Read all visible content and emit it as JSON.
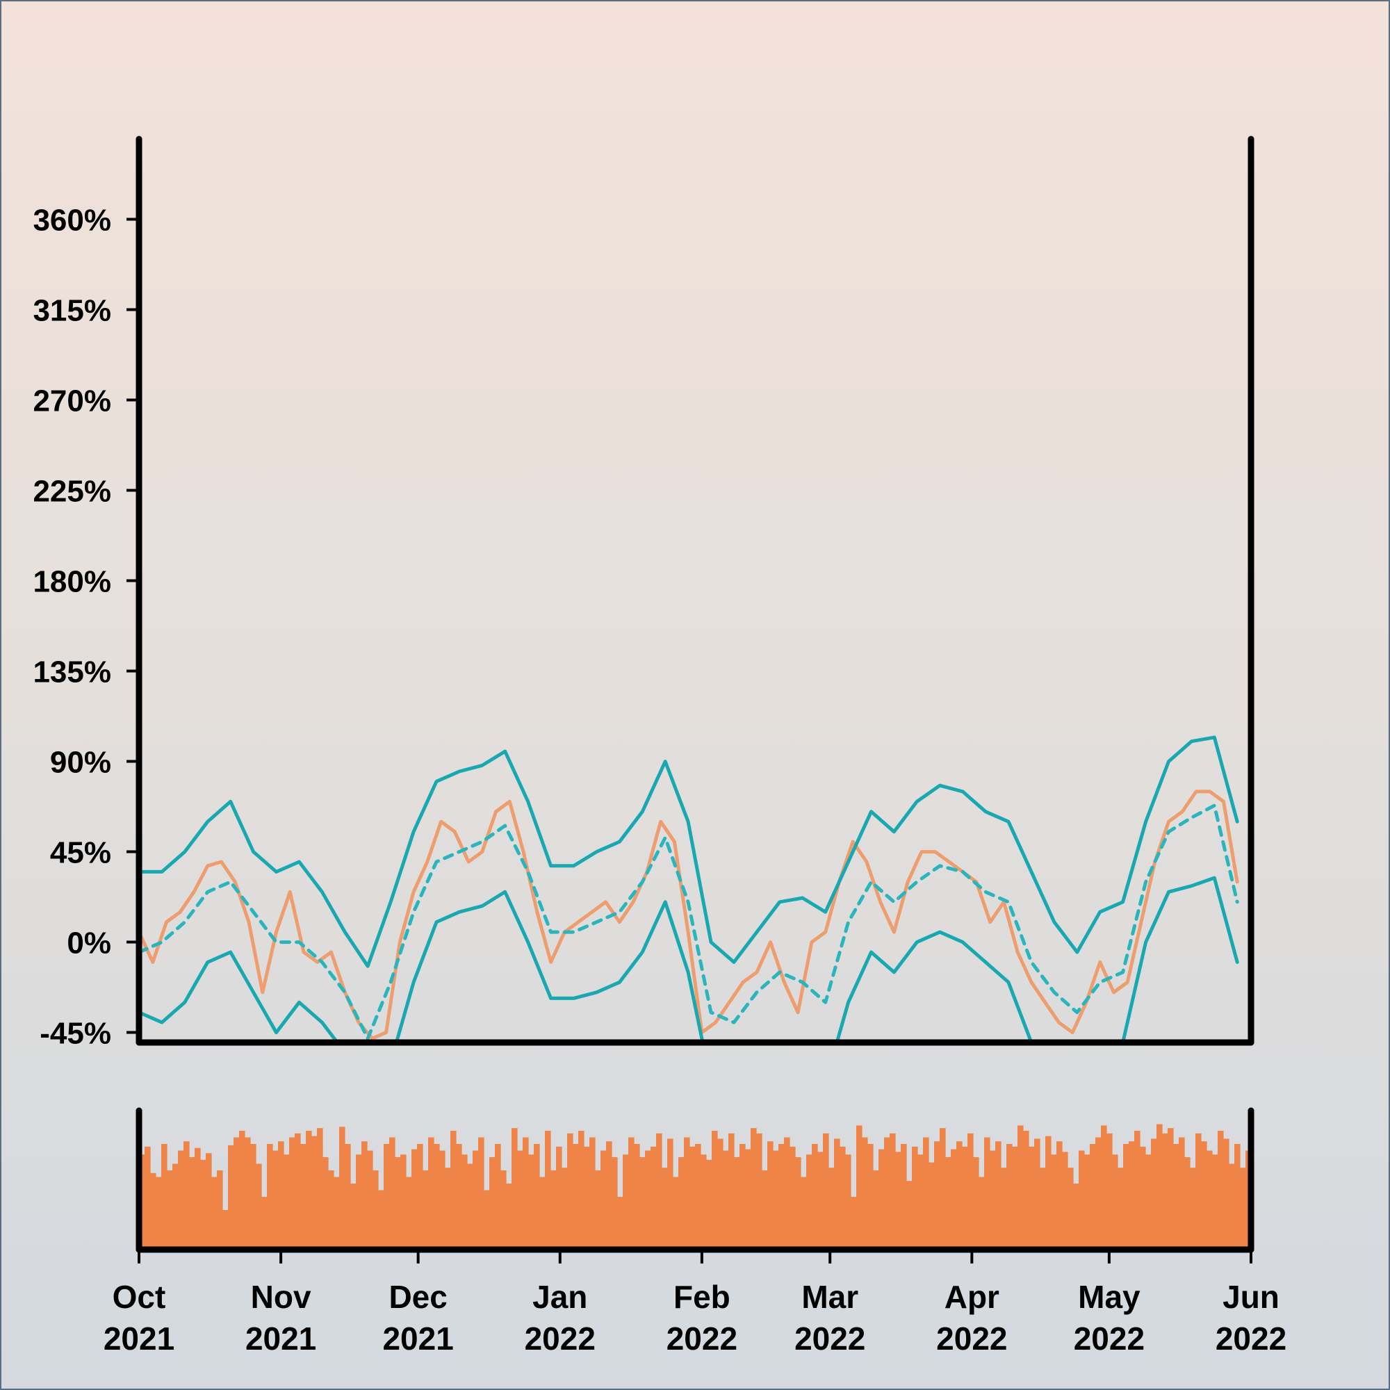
{
  "chart_data": {
    "type": "line",
    "title": "",
    "xlabel": "",
    "ylabel": "",
    "x_range": [
      "2021-10-01",
      "2022-06-01"
    ],
    "ylim": [
      -50,
      400
    ],
    "y_ticks": [
      -45,
      0,
      45,
      90,
      135,
      180,
      225,
      270,
      315,
      360
    ],
    "y_tick_labels": [
      "-45%",
      "0%",
      "45%",
      "90%",
      "135%",
      "180%",
      "225%",
      "270%",
      "315%",
      "360%"
    ],
    "x_ticks": [
      "2021-10-01",
      "2021-11-01",
      "2021-12-01",
      "2022-01-01",
      "2022-02-01",
      "2022-03-01",
      "2022-04-01",
      "2022-05-01",
      "2022-06-01"
    ],
    "x_tick_labels": [
      [
        "Oct",
        "2021"
      ],
      [
        "Nov",
        "2021"
      ],
      [
        "Dec",
        "2021"
      ],
      [
        "Jan",
        "2022"
      ],
      [
        "Feb",
        "2022"
      ],
      [
        "Mar",
        "2022"
      ],
      [
        "Apr",
        "2022"
      ],
      [
        "May",
        "2022"
      ],
      [
        "Jun",
        "2022"
      ]
    ],
    "series": [
      {
        "role": "price",
        "color": "#f0925a",
        "points": [
          [
            "2021-10-01",
            5
          ],
          [
            "2021-10-04",
            -10
          ],
          [
            "2021-10-07",
            10
          ],
          [
            "2021-10-10",
            15
          ],
          [
            "2021-10-13",
            25
          ],
          [
            "2021-10-16",
            38
          ],
          [
            "2021-10-19",
            40
          ],
          [
            "2021-10-22",
            30
          ],
          [
            "2021-10-25",
            10
          ],
          [
            "2021-10-28",
            -25
          ],
          [
            "2021-10-31",
            5
          ],
          [
            "2021-11-03",
            25
          ],
          [
            "2021-11-06",
            -5
          ],
          [
            "2021-11-09",
            -10
          ],
          [
            "2021-11-12",
            -5
          ],
          [
            "2021-11-15",
            -25
          ],
          [
            "2021-11-18",
            -40
          ],
          [
            "2021-11-21",
            -48
          ],
          [
            "2021-11-24",
            -45
          ],
          [
            "2021-11-27",
            0
          ],
          [
            "2021-11-30",
            25
          ],
          [
            "2021-12-03",
            40
          ],
          [
            "2021-12-06",
            60
          ],
          [
            "2021-12-09",
            55
          ],
          [
            "2021-12-12",
            40
          ],
          [
            "2021-12-15",
            45
          ],
          [
            "2021-12-18",
            65
          ],
          [
            "2021-12-21",
            70
          ],
          [
            "2021-12-24",
            45
          ],
          [
            "2021-12-27",
            15
          ],
          [
            "2021-12-30",
            -10
          ],
          [
            "2022-01-02",
            5
          ],
          [
            "2022-01-05",
            10
          ],
          [
            "2022-01-08",
            15
          ],
          [
            "2022-01-11",
            20
          ],
          [
            "2022-01-14",
            10
          ],
          [
            "2022-01-17",
            20
          ],
          [
            "2022-01-20",
            35
          ],
          [
            "2022-01-23",
            60
          ],
          [
            "2022-01-26",
            50
          ],
          [
            "2022-01-29",
            5
          ],
          [
            "2022-02-01",
            -45
          ],
          [
            "2022-02-04",
            -40
          ],
          [
            "2022-02-07",
            -30
          ],
          [
            "2022-02-10",
            -20
          ],
          [
            "2022-02-13",
            -15
          ],
          [
            "2022-02-16",
            0
          ],
          [
            "2022-02-19",
            -20
          ],
          [
            "2022-02-22",
            -35
          ],
          [
            "2022-02-25",
            0
          ],
          [
            "2022-02-28",
            5
          ],
          [
            "2022-03-03",
            30
          ],
          [
            "2022-03-06",
            50
          ],
          [
            "2022-03-09",
            40
          ],
          [
            "2022-03-12",
            20
          ],
          [
            "2022-03-15",
            5
          ],
          [
            "2022-03-18",
            30
          ],
          [
            "2022-03-21",
            45
          ],
          [
            "2022-03-24",
            45
          ],
          [
            "2022-03-27",
            40
          ],
          [
            "2022-03-30",
            35
          ],
          [
            "2022-04-02",
            30
          ],
          [
            "2022-04-05",
            10
          ],
          [
            "2022-04-08",
            20
          ],
          [
            "2022-04-11",
            -5
          ],
          [
            "2022-04-14",
            -20
          ],
          [
            "2022-04-17",
            -30
          ],
          [
            "2022-04-20",
            -40
          ],
          [
            "2022-04-23",
            -45
          ],
          [
            "2022-04-26",
            -30
          ],
          [
            "2022-04-29",
            -10
          ],
          [
            "2022-05-02",
            -25
          ],
          [
            "2022-05-05",
            -20
          ],
          [
            "2022-05-08",
            10
          ],
          [
            "2022-05-11",
            40
          ],
          [
            "2022-05-14",
            60
          ],
          [
            "2022-05-17",
            65
          ],
          [
            "2022-05-20",
            75
          ],
          [
            "2022-05-23",
            75
          ],
          [
            "2022-05-26",
            70
          ],
          [
            "2022-05-29",
            30
          ]
        ]
      },
      {
        "role": "moving-average",
        "color": "#2ab5bd",
        "dashed": true,
        "points": [
          [
            "2021-10-01",
            -5
          ],
          [
            "2021-10-06",
            0
          ],
          [
            "2021-10-11",
            10
          ],
          [
            "2021-10-16",
            25
          ],
          [
            "2021-10-21",
            30
          ],
          [
            "2021-10-26",
            15
          ],
          [
            "2021-10-31",
            0
          ],
          [
            "2021-11-05",
            0
          ],
          [
            "2021-11-10",
            -10
          ],
          [
            "2021-11-15",
            -25
          ],
          [
            "2021-11-20",
            -48
          ],
          [
            "2021-11-25",
            -20
          ],
          [
            "2021-11-30",
            15
          ],
          [
            "2021-12-05",
            40
          ],
          [
            "2021-12-10",
            45
          ],
          [
            "2021-12-15",
            50
          ],
          [
            "2021-12-20",
            58
          ],
          [
            "2021-12-25",
            35
          ],
          [
            "2021-12-30",
            5
          ],
          [
            "2022-01-04",
            5
          ],
          [
            "2022-01-09",
            10
          ],
          [
            "2022-01-14",
            15
          ],
          [
            "2022-01-19",
            30
          ],
          [
            "2022-01-24",
            52
          ],
          [
            "2022-01-29",
            20
          ],
          [
            "2022-02-03",
            -35
          ],
          [
            "2022-02-08",
            -40
          ],
          [
            "2022-02-13",
            -25
          ],
          [
            "2022-02-18",
            -15
          ],
          [
            "2022-02-23",
            -20
          ],
          [
            "2022-02-28",
            -30
          ],
          [
            "2022-03-05",
            10
          ],
          [
            "2022-03-10",
            30
          ],
          [
            "2022-03-15",
            20
          ],
          [
            "2022-03-20",
            30
          ],
          [
            "2022-03-25",
            38
          ],
          [
            "2022-03-30",
            35
          ],
          [
            "2022-04-04",
            25
          ],
          [
            "2022-04-09",
            20
          ],
          [
            "2022-04-14",
            -10
          ],
          [
            "2022-04-19",
            -25
          ],
          [
            "2022-04-24",
            -35
          ],
          [
            "2022-04-29",
            -20
          ],
          [
            "2022-05-04",
            -15
          ],
          [
            "2022-05-09",
            30
          ],
          [
            "2022-05-14",
            55
          ],
          [
            "2022-05-19",
            62
          ],
          [
            "2022-05-24",
            68
          ],
          [
            "2022-05-29",
            20
          ]
        ]
      },
      {
        "role": "upper-band",
        "color": "#1aa8b0",
        "points": [
          [
            "2021-10-01",
            35
          ],
          [
            "2021-10-06",
            35
          ],
          [
            "2021-10-11",
            45
          ],
          [
            "2021-10-16",
            60
          ],
          [
            "2021-10-21",
            70
          ],
          [
            "2021-10-26",
            45
          ],
          [
            "2021-10-31",
            35
          ],
          [
            "2021-11-05",
            40
          ],
          [
            "2021-11-10",
            25
          ],
          [
            "2021-11-15",
            5
          ],
          [
            "2021-11-20",
            -12
          ],
          [
            "2021-11-25",
            20
          ],
          [
            "2021-11-30",
            55
          ],
          [
            "2021-12-05",
            80
          ],
          [
            "2021-12-10",
            85
          ],
          [
            "2021-12-15",
            88
          ],
          [
            "2021-12-20",
            95
          ],
          [
            "2021-12-25",
            70
          ],
          [
            "2021-12-30",
            38
          ],
          [
            "2022-01-04",
            38
          ],
          [
            "2022-01-09",
            45
          ],
          [
            "2022-01-14",
            50
          ],
          [
            "2022-01-19",
            65
          ],
          [
            "2022-01-24",
            90
          ],
          [
            "2022-01-29",
            60
          ],
          [
            "2022-02-03",
            0
          ],
          [
            "2022-02-08",
            -10
          ],
          [
            "2022-02-13",
            5
          ],
          [
            "2022-02-18",
            20
          ],
          [
            "2022-02-23",
            22
          ],
          [
            "2022-02-28",
            15
          ],
          [
            "2022-03-05",
            40
          ],
          [
            "2022-03-10",
            65
          ],
          [
            "2022-03-15",
            55
          ],
          [
            "2022-03-20",
            70
          ],
          [
            "2022-03-25",
            78
          ],
          [
            "2022-03-30",
            75
          ],
          [
            "2022-04-04",
            65
          ],
          [
            "2022-04-09",
            60
          ],
          [
            "2022-04-14",
            35
          ],
          [
            "2022-04-19",
            10
          ],
          [
            "2022-04-24",
            -5
          ],
          [
            "2022-04-29",
            15
          ],
          [
            "2022-05-04",
            20
          ],
          [
            "2022-05-09",
            60
          ],
          [
            "2022-05-14",
            90
          ],
          [
            "2022-05-19",
            100
          ],
          [
            "2022-05-24",
            102
          ],
          [
            "2022-05-29",
            60
          ]
        ]
      },
      {
        "role": "lower-band",
        "color": "#1aa8b0",
        "points": [
          [
            "2021-10-01",
            -35
          ],
          [
            "2021-10-06",
            -40
          ],
          [
            "2021-10-11",
            -30
          ],
          [
            "2021-10-16",
            -10
          ],
          [
            "2021-10-21",
            -5
          ],
          [
            "2021-10-26",
            -25
          ],
          [
            "2021-10-31",
            -45
          ],
          [
            "2021-11-05",
            -30
          ],
          [
            "2021-11-10",
            -40
          ],
          [
            "2021-11-15",
            -55
          ],
          [
            "2021-11-20",
            -80
          ],
          [
            "2021-11-25",
            -60
          ],
          [
            "2021-11-30",
            -20
          ],
          [
            "2021-12-05",
            10
          ],
          [
            "2021-12-10",
            15
          ],
          [
            "2021-12-15",
            18
          ],
          [
            "2021-12-20",
            25
          ],
          [
            "2021-12-25",
            0
          ],
          [
            "2021-12-30",
            -28
          ],
          [
            "2022-01-04",
            -28
          ],
          [
            "2022-01-09",
            -25
          ],
          [
            "2022-01-14",
            -20
          ],
          [
            "2022-01-19",
            -5
          ],
          [
            "2022-01-24",
            20
          ],
          [
            "2022-01-29",
            -15
          ],
          [
            "2022-02-03",
            -70
          ],
          [
            "2022-02-08",
            -75
          ],
          [
            "2022-02-13",
            -55
          ],
          [
            "2022-02-18",
            -50
          ],
          [
            "2022-02-23",
            -60
          ],
          [
            "2022-02-28",
            -70
          ],
          [
            "2022-03-05",
            -30
          ],
          [
            "2022-03-10",
            -5
          ],
          [
            "2022-03-15",
            -15
          ],
          [
            "2022-03-20",
            0
          ],
          [
            "2022-03-25",
            5
          ],
          [
            "2022-03-30",
            0
          ],
          [
            "2022-04-04",
            -10
          ],
          [
            "2022-04-09",
            -20
          ],
          [
            "2022-04-14",
            -50
          ],
          [
            "2022-04-19",
            -65
          ],
          [
            "2022-04-24",
            -70
          ],
          [
            "2022-04-29",
            -55
          ],
          [
            "2022-05-04",
            -50
          ],
          [
            "2022-05-09",
            0
          ],
          [
            "2022-05-14",
            25
          ],
          [
            "2022-05-19",
            28
          ],
          [
            "2022-05-24",
            32
          ],
          [
            "2022-05-29",
            -10
          ]
        ]
      }
    ],
    "volume": {
      "color": "#ee8447",
      "values": [
        0.72,
        0.78,
        0.58,
        0.55,
        0.8,
        0.6,
        0.65,
        0.75,
        0.82,
        0.7,
        0.77,
        0.68,
        0.73,
        0.55,
        0.6,
        0.3,
        0.79,
        0.85,
        0.9,
        0.85,
        0.8,
        0.65,
        0.4,
        0.8,
        0.75,
        0.82,
        0.72,
        0.85,
        0.88,
        0.8,
        0.9,
        0.86,
        0.92,
        0.7,
        0.6,
        0.55,
        0.93,
        0.8,
        0.5,
        0.72,
        0.82,
        0.75,
        0.6,
        0.45,
        0.8,
        0.85,
        0.7,
        0.72,
        0.55,
        0.76,
        0.8,
        0.6,
        0.85,
        0.8,
        0.75,
        0.62,
        0.9,
        0.8,
        0.72,
        0.65,
        0.75,
        0.85,
        0.45,
        0.7,
        0.8,
        0.6,
        0.5,
        0.92,
        0.75,
        0.85,
        0.72,
        0.8,
        0.55,
        0.9,
        0.6,
        0.78,
        0.62,
        0.88,
        0.8,
        0.9,
        0.78,
        0.85,
        0.6,
        0.75,
        0.82,
        0.7,
        0.4,
        0.72,
        0.85,
        0.8,
        0.7,
        0.75,
        0.78,
        0.88,
        0.62,
        0.84,
        0.55,
        0.7,
        0.85,
        0.78,
        0.8,
        0.72,
        0.68,
        0.9,
        0.84,
        0.75,
        0.88,
        0.7,
        0.8,
        0.76,
        0.92,
        0.88,
        0.6,
        0.82,
        0.75,
        0.8,
        0.85,
        0.78,
        0.7,
        0.55,
        0.72,
        0.8,
        0.74,
        0.88,
        0.62,
        0.84,
        0.78,
        0.72,
        0.4,
        0.94,
        0.85,
        0.8,
        0.6,
        0.76,
        0.85,
        0.88,
        0.74,
        0.8,
        0.52,
        0.78,
        0.72,
        0.85,
        0.66,
        0.82,
        0.92,
        0.7,
        0.76,
        0.82,
        0.78,
        0.88,
        0.7,
        0.55,
        0.85,
        0.75,
        0.82,
        0.62,
        0.8,
        0.78,
        0.94,
        0.9,
        0.78,
        0.84,
        0.62,
        0.86,
        0.72,
        0.82,
        0.74,
        0.62,
        0.5,
        0.75,
        0.72,
        0.8,
        0.85,
        0.94,
        0.88,
        0.72,
        0.62,
        0.8,
        0.82,
        0.9,
        0.78,
        0.72,
        0.84,
        0.95,
        0.88,
        0.92,
        0.8,
        0.85,
        0.7,
        0.62,
        0.88,
        0.82,
        0.75,
        0.72,
        0.9,
        0.84,
        0.65,
        0.8,
        0.62,
        0.75
      ]
    }
  }
}
